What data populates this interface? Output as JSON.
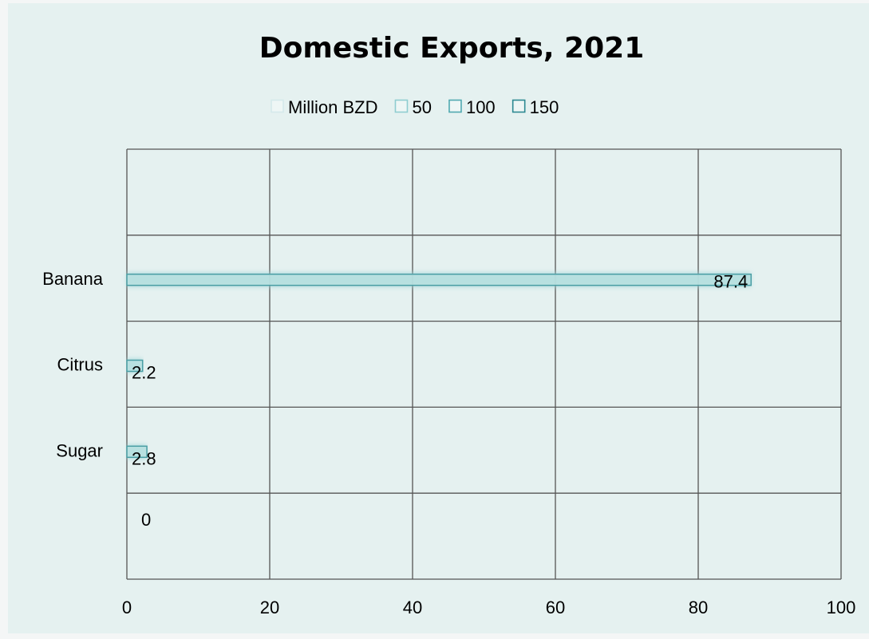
{
  "colors": {
    "page_background": "#f4f6f6",
    "plot_background": "#e5f1f0",
    "grid": "#555555",
    "bar_fill": "#b9e0e0",
    "bar_stroke": "#4a9ea4",
    "bar_glow": "#9fd6d8",
    "legend_swatches": [
      "#d5e9eb",
      "#8fcdd0",
      "#4fa9b0",
      "#2c8991"
    ]
  },
  "chart_data": {
    "type": "bar",
    "orientation": "horizontal",
    "title": "Domestic Exports, 2021",
    "legend": {
      "placement": "top",
      "entries": [
        "Million BZD",
        "50",
        "100",
        "150"
      ]
    },
    "categories": [
      "Banana",
      "Citrus",
      "Sugar",
      ""
    ],
    "values": [
      87.4,
      2.2,
      2.8,
      0
    ],
    "data_labels": [
      "87.4",
      "2.2",
      "2.8",
      "0"
    ],
    "xlim": [
      0,
      100
    ],
    "x_ticks": [
      0,
      20,
      40,
      60,
      80,
      100
    ],
    "x_tick_labels": [
      "0",
      "20",
      "40",
      "60",
      "80",
      "100"
    ],
    "grid": true
  }
}
